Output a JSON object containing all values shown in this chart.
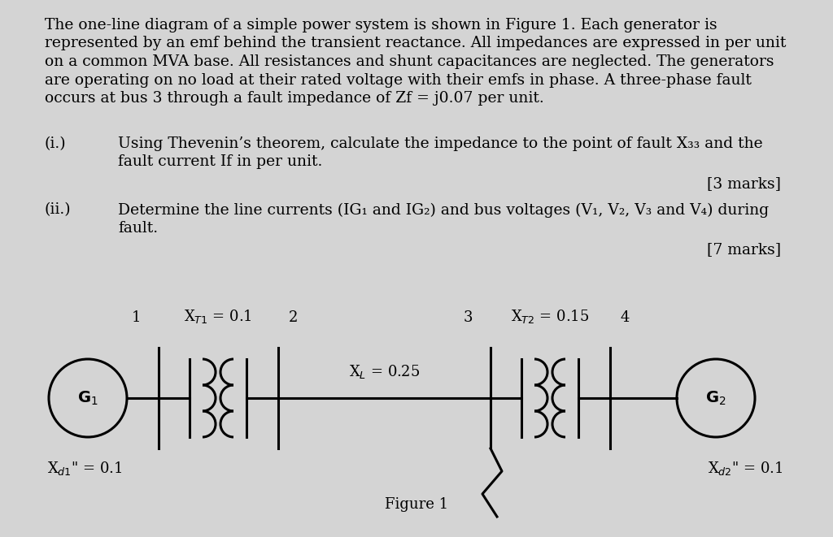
{
  "background_color": "#d4d4d4",
  "text_color": "#000000",
  "para_line1": "The one-line diagram of a simple power system is shown in Figure 1. Each generator is",
  "para_line2": "represented by an emf behind the transient reactance. All impedances are expressed in per unit",
  "para_line3": "on a common MVA base. All resistances and shunt capacitances are neglected. The generators",
  "para_line4": "are operating on no load at their rated voltage with their emfs in phase. A three-phase fault",
  "para_line5": "occurs at bus 3 through a fault impedance of Zf = j0.07 per unit.",
  "pi_label": "(i.)",
  "pi_line1": "Using Thevenin’s theorem, calculate the impedance to the point of fault X₃₃ and the",
  "pi_line2": "fault current If in per unit.",
  "pi_marks": "[3 marks]",
  "pii_label": "(ii.)",
  "pii_line1": "Determine the line currents (IG₁ and IG₂) and bus voltages (V₁, V₂, V₃ and V₄) during",
  "pii_line2": "fault.",
  "pii_marks": "[7 marks]",
  "fig_caption": "Figure 1"
}
